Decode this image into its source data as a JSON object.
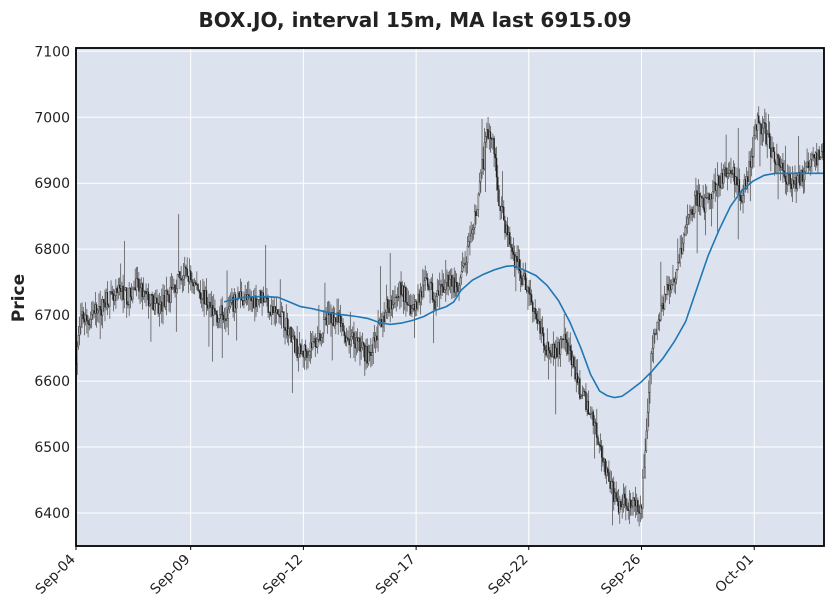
{
  "chart_data": {
    "type": "candlestick",
    "title": "BOX.JO, interval 15m, MA last 6915.09",
    "xlabel": "",
    "ylabel": "Price",
    "ylim": [
      6350,
      7105
    ],
    "yticks": [
      6400,
      6500,
      6600,
      6700,
      6800,
      6900,
      7000,
      7100
    ],
    "xlim": [
      0,
      1
    ],
    "xticks": [
      {
        "label": "Sep-04",
        "pos": 0.0
      },
      {
        "label": "Sep-09",
        "pos": 0.1533
      },
      {
        "label": "Sep-12",
        "pos": 0.304
      },
      {
        "label": "Sep-17",
        "pos": 0.4547
      },
      {
        "label": "Sep-22",
        "pos": 0.6053
      },
      {
        "label": "Sep-26",
        "pos": 0.756
      },
      {
        "label": "Oct-01",
        "pos": 0.9067
      }
    ],
    "grid": true,
    "background": "#dde3ee",
    "candle_color": "#222222",
    "ma_color": "#1f77b4",
    "price_path": [
      [
        0.0,
        6640
      ],
      [
        0.008,
        6700
      ],
      [
        0.016,
        6690
      ],
      [
        0.024,
        6710
      ],
      [
        0.032,
        6700
      ],
      [
        0.04,
        6730
      ],
      [
        0.05,
        6720
      ],
      [
        0.06,
        6740
      ],
      [
        0.07,
        6725
      ],
      [
        0.08,
        6745
      ],
      [
        0.09,
        6730
      ],
      [
        0.1,
        6720
      ],
      [
        0.11,
        6710
      ],
      [
        0.12,
        6725
      ],
      [
        0.13,
        6740
      ],
      [
        0.14,
        6760
      ],
      [
        0.15,
        6760
      ],
      [
        0.16,
        6745
      ],
      [
        0.17,
        6730
      ],
      [
        0.18,
        6710
      ],
      [
        0.19,
        6700
      ],
      [
        0.2,
        6705
      ],
      [
        0.21,
        6715
      ],
      [
        0.22,
        6730
      ],
      [
        0.23,
        6720
      ],
      [
        0.24,
        6725
      ],
      [
        0.25,
        6730
      ],
      [
        0.26,
        6710
      ],
      [
        0.27,
        6700
      ],
      [
        0.28,
        6690
      ],
      [
        0.29,
        6660
      ],
      [
        0.3,
        6640
      ],
      [
        0.31,
        6650
      ],
      [
        0.32,
        6660
      ],
      [
        0.33,
        6680
      ],
      [
        0.34,
        6700
      ],
      [
        0.35,
        6690
      ],
      [
        0.36,
        6670
      ],
      [
        0.37,
        6660
      ],
      [
        0.38,
        6650
      ],
      [
        0.39,
        6640
      ],
      [
        0.4,
        6660
      ],
      [
        0.41,
        6700
      ],
      [
        0.42,
        6720
      ],
      [
        0.43,
        6740
      ],
      [
        0.44,
        6730
      ],
      [
        0.45,
        6710
      ],
      [
        0.46,
        6730
      ],
      [
        0.47,
        6750
      ],
      [
        0.48,
        6720
      ],
      [
        0.49,
        6740
      ],
      [
        0.5,
        6760
      ],
      [
        0.51,
        6730
      ],
      [
        0.52,
        6780
      ],
      [
        0.53,
        6820
      ],
      [
        0.54,
        6900
      ],
      [
        0.55,
        6980
      ],
      [
        0.558,
        6960
      ],
      [
        0.566,
        6870
      ],
      [
        0.575,
        6830
      ],
      [
        0.585,
        6790
      ],
      [
        0.595,
        6760
      ],
      [
        0.605,
        6740
      ],
      [
        0.615,
        6700
      ],
      [
        0.625,
        6660
      ],
      [
        0.635,
        6640
      ],
      [
        0.645,
        6650
      ],
      [
        0.655,
        6660
      ],
      [
        0.665,
        6620
      ],
      [
        0.675,
        6580
      ],
      [
        0.685,
        6560
      ],
      [
        0.695,
        6530
      ],
      [
        0.705,
        6480
      ],
      [
        0.715,
        6440
      ],
      [
        0.725,
        6410
      ],
      [
        0.735,
        6420
      ],
      [
        0.745,
        6410
      ],
      [
        0.755,
        6400
      ],
      [
        0.762,
        6520
      ],
      [
        0.77,
        6650
      ],
      [
        0.78,
        6700
      ],
      [
        0.79,
        6740
      ],
      [
        0.8,
        6760
      ],
      [
        0.81,
        6810
      ],
      [
        0.82,
        6850
      ],
      [
        0.83,
        6880
      ],
      [
        0.84,
        6860
      ],
      [
        0.85,
        6890
      ],
      [
        0.86,
        6900
      ],
      [
        0.87,
        6920
      ],
      [
        0.88,
        6910
      ],
      [
        0.89,
        6880
      ],
      [
        0.9,
        6920
      ],
      [
        0.91,
        6990
      ],
      [
        0.92,
        6980
      ],
      [
        0.93,
        6950
      ],
      [
        0.94,
        6930
      ],
      [
        0.95,
        6910
      ],
      [
        0.96,
        6900
      ],
      [
        0.97,
        6910
      ],
      [
        0.98,
        6930
      ],
      [
        0.99,
        6940
      ],
      [
        1.0,
        6950
      ]
    ],
    "ma": [
      [
        0.198,
        6720
      ],
      [
        0.21,
        6724
      ],
      [
        0.225,
        6727
      ],
      [
        0.24,
        6728
      ],
      [
        0.255,
        6728
      ],
      [
        0.27,
        6727
      ],
      [
        0.285,
        6720
      ],
      [
        0.3,
        6713
      ],
      [
        0.315,
        6710
      ],
      [
        0.33,
        6706
      ],
      [
        0.345,
        6702
      ],
      [
        0.36,
        6700
      ],
      [
        0.375,
        6698
      ],
      [
        0.39,
        6695
      ],
      [
        0.405,
        6689
      ],
      [
        0.42,
        6686
      ],
      [
        0.435,
        6688
      ],
      [
        0.45,
        6692
      ],
      [
        0.465,
        6698
      ],
      [
        0.48,
        6707
      ],
      [
        0.495,
        6713
      ],
      [
        0.505,
        6720
      ],
      [
        0.515,
        6738
      ],
      [
        0.53,
        6753
      ],
      [
        0.545,
        6762
      ],
      [
        0.56,
        6769
      ],
      [
        0.575,
        6774
      ],
      [
        0.585,
        6775
      ],
      [
        0.6,
        6768
      ],
      [
        0.615,
        6760
      ],
      [
        0.63,
        6745
      ],
      [
        0.645,
        6722
      ],
      [
        0.66,
        6690
      ],
      [
        0.675,
        6650
      ],
      [
        0.688,
        6610
      ],
      [
        0.7,
        6585
      ],
      [
        0.71,
        6578
      ],
      [
        0.72,
        6575
      ],
      [
        0.73,
        6577
      ],
      [
        0.74,
        6585
      ],
      [
        0.755,
        6598
      ],
      [
        0.77,
        6615
      ],
      [
        0.785,
        6635
      ],
      [
        0.8,
        6660
      ],
      [
        0.815,
        6690
      ],
      [
        0.83,
        6740
      ],
      [
        0.845,
        6790
      ],
      [
        0.86,
        6830
      ],
      [
        0.875,
        6865
      ],
      [
        0.89,
        6889
      ],
      [
        0.905,
        6903
      ],
      [
        0.92,
        6912
      ],
      [
        0.935,
        6915
      ],
      [
        0.95,
        6915
      ],
      [
        1.0,
        6915
      ]
    ],
    "ma_last": 6915.09
  }
}
